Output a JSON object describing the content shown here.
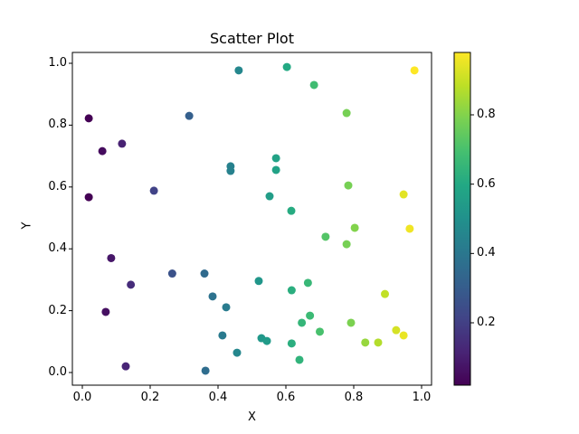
{
  "chart_data": {
    "type": "scatter",
    "title": "Scatter Plot",
    "xlabel": "X",
    "ylabel": "Y",
    "xlim": [
      -0.03,
      1.03
    ],
    "ylim": [
      -0.04,
      1.03
    ],
    "xticks": [
      "0.0",
      "0.2",
      "0.4",
      "0.6",
      "0.8",
      "1.0"
    ],
    "yticks": [
      "0.0",
      "0.2",
      "0.4",
      "0.6",
      "0.8",
      "1.0"
    ],
    "grid": false,
    "colormap": "viridis",
    "colorbar": {
      "range": [
        0.02,
        0.98
      ],
      "ticks": [
        "0.2",
        "0.4",
        "0.6",
        "0.8"
      ]
    },
    "points": [
      {
        "x": 0.019,
        "y": 0.822,
        "c": 0.02
      },
      {
        "x": 0.059,
        "y": 0.716,
        "c": 0.05
      },
      {
        "x": 0.117,
        "y": 0.74,
        "c": 0.11
      },
      {
        "x": 0.019,
        "y": 0.567,
        "c": 0.02
      },
      {
        "x": 0.085,
        "y": 0.37,
        "c": 0.08
      },
      {
        "x": 0.069,
        "y": 0.196,
        "c": 0.06
      },
      {
        "x": 0.143,
        "y": 0.284,
        "c": 0.14
      },
      {
        "x": 0.128,
        "y": 0.02,
        "c": 0.12
      },
      {
        "x": 0.211,
        "y": 0.588,
        "c": 0.21
      },
      {
        "x": 0.265,
        "y": 0.32,
        "c": 0.26
      },
      {
        "x": 0.315,
        "y": 0.83,
        "c": 0.31
      },
      {
        "x": 0.36,
        "y": 0.32,
        "c": 0.35
      },
      {
        "x": 0.363,
        "y": 0.006,
        "c": 0.36
      },
      {
        "x": 0.384,
        "y": 0.246,
        "c": 0.38
      },
      {
        "x": 0.413,
        "y": 0.12,
        "c": 0.41
      },
      {
        "x": 0.424,
        "y": 0.211,
        "c": 0.42
      },
      {
        "x": 0.437,
        "y": 0.667,
        "c": 0.44
      },
      {
        "x": 0.437,
        "y": 0.652,
        "c": 0.44
      },
      {
        "x": 0.456,
        "y": 0.064,
        "c": 0.46
      },
      {
        "x": 0.461,
        "y": 0.977,
        "c": 0.46
      },
      {
        "x": 0.52,
        "y": 0.296,
        "c": 0.52
      },
      {
        "x": 0.528,
        "y": 0.111,
        "c": 0.53
      },
      {
        "x": 0.544,
        "y": 0.102,
        "c": 0.54
      },
      {
        "x": 0.552,
        "y": 0.57,
        "c": 0.55
      },
      {
        "x": 0.571,
        "y": 0.693,
        "c": 0.57
      },
      {
        "x": 0.571,
        "y": 0.655,
        "c": 0.57
      },
      {
        "x": 0.603,
        "y": 0.988,
        "c": 0.6
      },
      {
        "x": 0.616,
        "y": 0.523,
        "c": 0.61
      },
      {
        "x": 0.617,
        "y": 0.266,
        "c": 0.62
      },
      {
        "x": 0.617,
        "y": 0.094,
        "c": 0.62
      },
      {
        "x": 0.64,
        "y": 0.041,
        "c": 0.64
      },
      {
        "x": 0.647,
        "y": 0.161,
        "c": 0.65
      },
      {
        "x": 0.665,
        "y": 0.29,
        "c": 0.66
      },
      {
        "x": 0.671,
        "y": 0.184,
        "c": 0.67
      },
      {
        "x": 0.683,
        "y": 0.93,
        "c": 0.68
      },
      {
        "x": 0.7,
        "y": 0.132,
        "c": 0.7
      },
      {
        "x": 0.717,
        "y": 0.439,
        "c": 0.72
      },
      {
        "x": 0.779,
        "y": 0.839,
        "c": 0.78
      },
      {
        "x": 0.779,
        "y": 0.415,
        "c": 0.78
      },
      {
        "x": 0.784,
        "y": 0.605,
        "c": 0.78
      },
      {
        "x": 0.792,
        "y": 0.161,
        "c": 0.79
      },
      {
        "x": 0.803,
        "y": 0.468,
        "c": 0.8
      },
      {
        "x": 0.834,
        "y": 0.097,
        "c": 0.83
      },
      {
        "x": 0.872,
        "y": 0.097,
        "c": 0.87
      },
      {
        "x": 0.892,
        "y": 0.254,
        "c": 0.89
      },
      {
        "x": 0.925,
        "y": 0.137,
        "c": 0.92
      },
      {
        "x": 0.947,
        "y": 0.576,
        "c": 0.94
      },
      {
        "x": 0.947,
        "y": 0.12,
        "c": 0.95
      },
      {
        "x": 0.965,
        "y": 0.465,
        "c": 0.96
      },
      {
        "x": 0.979,
        "y": 0.977,
        "c": 0.98
      }
    ]
  }
}
